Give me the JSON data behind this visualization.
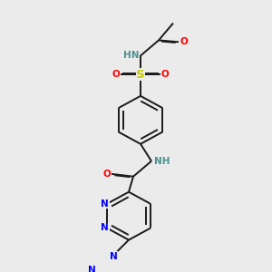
{
  "background_color": "#ebebeb",
  "bond_color": "#1a1a1a",
  "bond_lw": 1.4,
  "dbo": 0.055,
  "colors": {
    "N": "#0000ff",
    "O": "#ff0000",
    "S": "#cccc00",
    "HN_sulfonamide": "#4a9090",
    "HN_amide": "#4a9090",
    "C": "#1a1a1a"
  },
  "fs": 7.5,
  "figsize": [
    3.0,
    3.0
  ],
  "dpi": 100
}
